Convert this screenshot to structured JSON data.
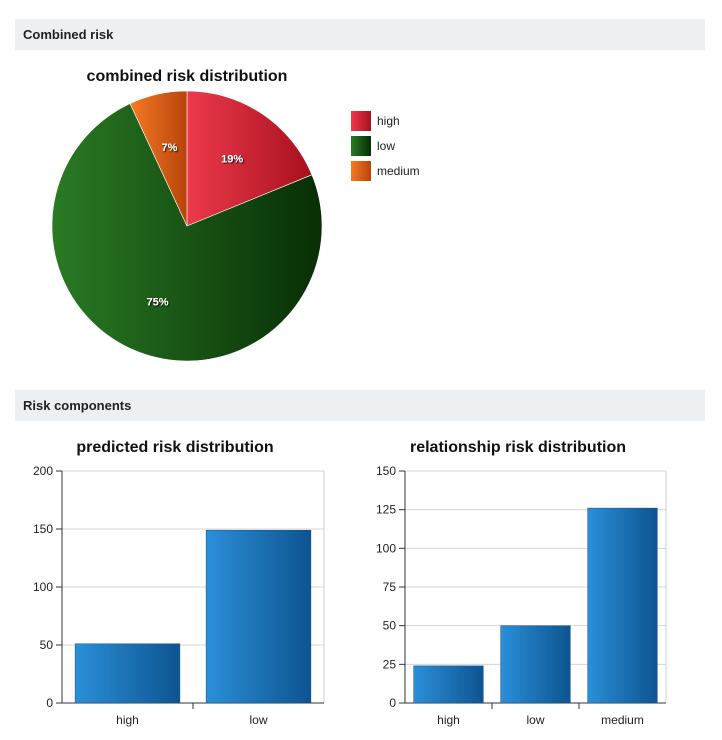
{
  "sections": {
    "combined": {
      "title": "Combined risk"
    },
    "components": {
      "title": "Risk components"
    }
  },
  "chart_data": [
    {
      "type": "pie",
      "title": "combined risk distribution",
      "slices": [
        {
          "label": "high",
          "percent": 19,
          "value_label": "19%",
          "color": "#d42a3a"
        },
        {
          "label": "low",
          "percent": 75,
          "value_label": "75%",
          "color": "#1e5e1a"
        },
        {
          "label": "medium",
          "percent": 7,
          "value_label": "7%",
          "color": "#e3651a"
        }
      ],
      "legend_position": "right"
    },
    {
      "type": "bar",
      "title": "predicted risk distribution",
      "categories": [
        "high",
        "low"
      ],
      "values": [
        51,
        149
      ],
      "ylim": [
        0,
        200
      ],
      "yticks": [
        0,
        50,
        100,
        150,
        200
      ],
      "xlabel": "",
      "ylabel": "",
      "grid": true,
      "color": "#1f78be"
    },
    {
      "type": "bar",
      "title": "relationship risk distribution",
      "categories": [
        "high",
        "low",
        "medium"
      ],
      "values": [
        24,
        50,
        126
      ],
      "ylim": [
        0,
        150
      ],
      "yticks": [
        0,
        25,
        50,
        75,
        100,
        125,
        150
      ],
      "xlabel": "",
      "ylabel": "",
      "grid": true,
      "color": "#1f78be"
    }
  ]
}
